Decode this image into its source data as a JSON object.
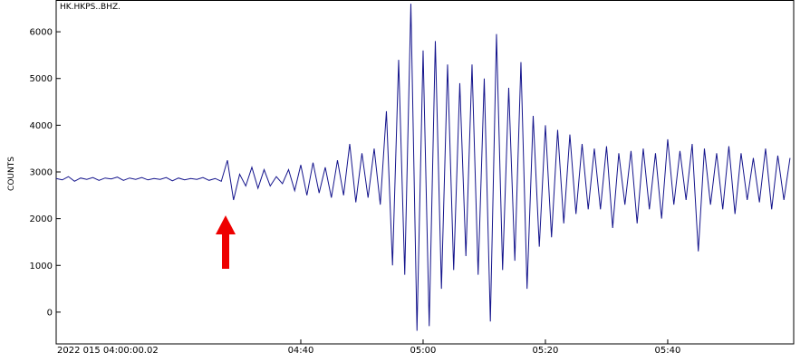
{
  "chart_data": {
    "type": "line",
    "title": "HK.HKPS..BHZ.",
    "y_label": "COUNTS",
    "color": "#14148c",
    "x": [
      0,
      1,
      2,
      3,
      4,
      5,
      6,
      7,
      8,
      9,
      10,
      11,
      12,
      13,
      14,
      15,
      16,
      17,
      18,
      19,
      20,
      21,
      22,
      23,
      24,
      25,
      26,
      27,
      28,
      29,
      30,
      31,
      32,
      33,
      34,
      35,
      36,
      37,
      38,
      39,
      40,
      41,
      42,
      43,
      44,
      45,
      46,
      47,
      48,
      49,
      50,
      51,
      52,
      53,
      54,
      55,
      56,
      57,
      58,
      59,
      60,
      61,
      62,
      63,
      64,
      65,
      66,
      67,
      68,
      69,
      70,
      71,
      72,
      73,
      74,
      75,
      76,
      77,
      78,
      79,
      80,
      81,
      82,
      83,
      84,
      85,
      86,
      87,
      88,
      89,
      90,
      91,
      92,
      93,
      94,
      95,
      96,
      97,
      98,
      99,
      100,
      101,
      102,
      103,
      104,
      105,
      106,
      107,
      108,
      109,
      110,
      111,
      112,
      113,
      114,
      115,
      116,
      117,
      118,
      119,
      120
    ],
    "values": [
      2860,
      2830,
      2900,
      2800,
      2870,
      2840,
      2880,
      2820,
      2870,
      2850,
      2890,
      2820,
      2870,
      2840,
      2880,
      2830,
      2860,
      2840,
      2880,
      2810,
      2870,
      2830,
      2860,
      2840,
      2880,
      2820,
      2860,
      2800,
      3250,
      2400,
      2950,
      2700,
      3100,
      2650,
      3050,
      2700,
      2900,
      2750,
      3050,
      2600,
      3150,
      2500,
      3200,
      2550,
      3100,
      2450,
      3250,
      2500,
      3600,
      2350,
      3400,
      2450,
      3500,
      2300,
      4300,
      1000,
      5400,
      800,
      6600,
      -400,
      5600,
      -300,
      5800,
      500,
      5300,
      900,
      4900,
      1200,
      5300,
      800,
      5000,
      -200,
      5950,
      900,
      4800,
      1100,
      5350,
      500,
      4200,
      1400,
      4000,
      1600,
      3900,
      1900,
      3800,
      2100,
      3600,
      2200,
      3500,
      2200,
      3550,
      1800,
      3400,
      2300,
      3450,
      1900,
      3500,
      2200,
      3400,
      2000,
      3700,
      2300,
      3450,
      2400,
      3600,
      1300,
      3500,
      2300,
      3400,
      2200,
      3550,
      2100,
      3400,
      2400,
      3300,
      2350,
      3500,
      2200,
      3350,
      2400,
      3300
    ],
    "xlim": [
      0,
      120.6
    ],
    "ylim": [
      -680,
      6680
    ],
    "xticks": [
      {
        "value": 0,
        "label": "2022 015 04:00:00.02"
      },
      {
        "value": 40,
        "label": "04:40"
      },
      {
        "value": 60,
        "label": "05:00"
      },
      {
        "value": 80,
        "label": "05:20"
      },
      {
        "value": 100,
        "label": "05:40"
      }
    ],
    "yticks": [
      0,
      1000,
      2000,
      3000,
      4000,
      5000,
      6000
    ]
  }
}
